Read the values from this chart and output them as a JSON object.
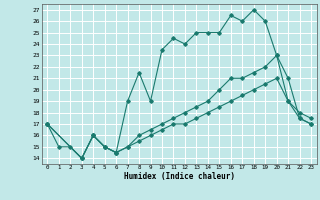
{
  "xlabel": "Humidex (Indice chaleur)",
  "bg_color": "#c2e8e8",
  "line_color": "#1a7a6e",
  "grid_color": "#ffffff",
  "xlim": [
    -0.5,
    23.5
  ],
  "ylim": [
    13.5,
    27.5
  ],
  "yticks": [
    14,
    15,
    16,
    17,
    18,
    19,
    20,
    21,
    22,
    23,
    24,
    25,
    26,
    27
  ],
  "xticks": [
    0,
    1,
    2,
    3,
    4,
    5,
    6,
    7,
    8,
    9,
    10,
    11,
    12,
    13,
    14,
    15,
    16,
    17,
    18,
    19,
    20,
    21,
    22,
    23
  ],
  "line1_x": [
    0,
    1,
    2,
    3,
    4,
    5,
    6,
    7,
    8,
    9,
    10,
    11,
    12,
    13,
    14,
    15,
    16,
    17,
    18,
    19,
    20,
    21,
    22,
    23
  ],
  "line1_y": [
    17,
    15,
    15,
    14,
    16,
    15,
    14.5,
    19,
    21.5,
    19,
    23.5,
    24.5,
    24,
    25,
    25,
    25,
    26.5,
    26,
    27,
    26,
    23,
    19,
    18,
    17.5
  ],
  "line2_x": [
    0,
    3,
    4,
    5,
    6,
    7,
    8,
    9,
    10,
    11,
    12,
    13,
    14,
    15,
    16,
    17,
    18,
    19,
    20,
    21,
    22,
    23
  ],
  "line2_y": [
    17,
    14,
    16,
    15,
    14.5,
    15,
    16,
    16.5,
    17,
    17.5,
    18,
    18.5,
    19,
    20,
    21,
    21,
    21.5,
    22,
    23,
    21,
    17.5,
    17
  ],
  "line3_x": [
    0,
    3,
    4,
    5,
    6,
    7,
    8,
    9,
    10,
    11,
    12,
    13,
    14,
    15,
    16,
    17,
    18,
    19,
    20,
    21,
    22,
    23
  ],
  "line3_y": [
    17,
    14,
    16,
    15,
    14.5,
    15,
    15.5,
    16,
    16.5,
    17,
    17,
    17.5,
    18,
    18.5,
    19,
    19.5,
    20,
    20.5,
    21,
    19,
    17.5,
    17
  ]
}
